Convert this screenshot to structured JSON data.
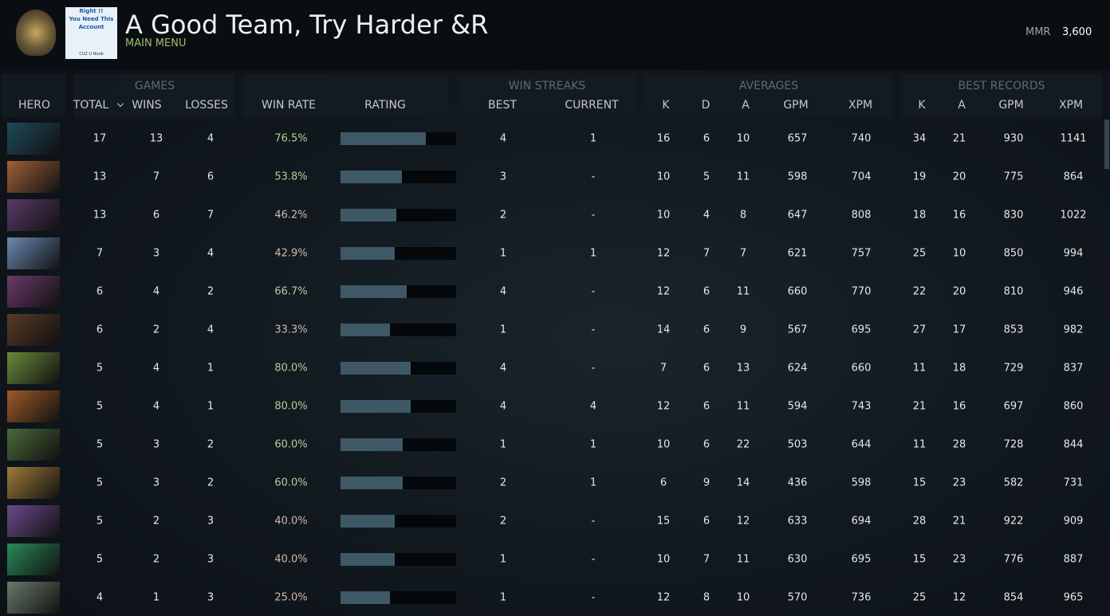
{
  "header": {
    "avatar_text": [
      "Right !!",
      "You Need This",
      "Account",
      "CUZ U Noob"
    ],
    "title": "A Good Team, Try Harder &R",
    "subtitle": "MAIN MENU",
    "mmr_label": "MMR",
    "mmr_value": "3,600"
  },
  "table": {
    "groups": [
      "GAMES",
      "WIN STREAKS",
      "AVERAGES",
      "BEST RECORDS"
    ],
    "columns": [
      "HERO",
      "TOTAL",
      "WINS",
      "LOSSES",
      "WIN RATE",
      "RATING",
      "BEST",
      "CURRENT",
      "K",
      "D",
      "A",
      "GPM",
      "XPM",
      "K",
      "A",
      "GPM",
      "XPM"
    ],
    "rating_range": [
      0,
      100
    ],
    "rows": [
      [
        17,
        13,
        4,
        "76.5%",
        74,
        4,
        1,
        16,
        6,
        10,
        657,
        740,
        34,
        21,
        930,
        1141
      ],
      [
        13,
        7,
        6,
        "53.8%",
        53,
        3,
        "-",
        10,
        5,
        11,
        598,
        704,
        19,
        20,
        775,
        864
      ],
      [
        13,
        6,
        7,
        "46.2%",
        48,
        2,
        "-",
        10,
        4,
        8,
        647,
        808,
        18,
        16,
        830,
        1022
      ],
      [
        7,
        3,
        4,
        "42.9%",
        47,
        1,
        1,
        12,
        7,
        7,
        621,
        757,
        25,
        10,
        850,
        994
      ],
      [
        6,
        4,
        2,
        "66.7%",
        57,
        4,
        "-",
        12,
        6,
        11,
        660,
        770,
        22,
        20,
        810,
        946
      ],
      [
        6,
        2,
        4,
        "33.3%",
        43,
        1,
        "-",
        14,
        6,
        9,
        567,
        695,
        27,
        17,
        853,
        982
      ],
      [
        5,
        4,
        1,
        "80.0%",
        61,
        4,
        "-",
        7,
        6,
        13,
        624,
        660,
        11,
        18,
        729,
        837
      ],
      [
        5,
        4,
        1,
        "80.0%",
        61,
        4,
        4,
        12,
        6,
        11,
        594,
        743,
        21,
        16,
        697,
        860
      ],
      [
        5,
        3,
        2,
        "60.0%",
        54,
        1,
        1,
        10,
        6,
        22,
        503,
        644,
        11,
        28,
        728,
        844
      ],
      [
        5,
        3,
        2,
        "60.0%",
        54,
        2,
        1,
        6,
        9,
        14,
        436,
        598,
        15,
        23,
        582,
        731
      ],
      [
        5,
        2,
        3,
        "40.0%",
        47,
        2,
        "-",
        15,
        6,
        12,
        633,
        694,
        28,
        21,
        922,
        909
      ],
      [
        5,
        2,
        3,
        "40.0%",
        47,
        1,
        "-",
        10,
        7,
        11,
        630,
        695,
        15,
        23,
        776,
        887
      ],
      [
        4,
        1,
        3,
        "25.0%",
        43,
        1,
        "-",
        12,
        8,
        10,
        570,
        736,
        25,
        12,
        854,
        965
      ]
    ]
  }
}
